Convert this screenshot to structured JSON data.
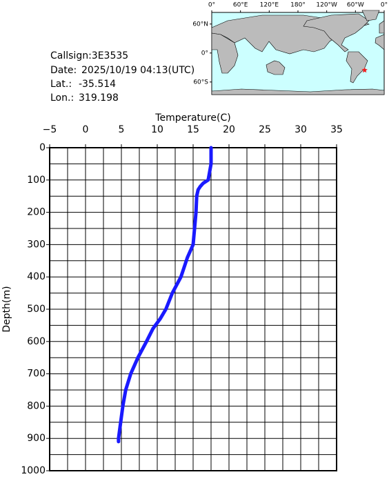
{
  "chart_data": {
    "type": "line",
    "orientation": "vertical",
    "x_label": "Depth(m)",
    "y_label": "Temperature(C)",
    "x": [
      0,
      50,
      100,
      110,
      120,
      130,
      150,
      200,
      250,
      300,
      340,
      360,
      400,
      450,
      500,
      530,
      560,
      600,
      650,
      700,
      750,
      800,
      850,
      900,
      910
    ],
    "series": [
      {
        "name": "Temperature",
        "color": "#1a1aff",
        "values": [
          17.5,
          17.5,
          17.1,
          16.4,
          16.0,
          15.7,
          15.5,
          15.4,
          15.2,
          15.0,
          14.2,
          13.9,
          13.3,
          12.1,
          11.2,
          10.4,
          9.4,
          8.5,
          7.3,
          6.3,
          5.6,
          5.2,
          4.9,
          4.6,
          4.6
        ]
      }
    ],
    "xlim": [
      0,
      1000
    ],
    "xticks": [
      0,
      100,
      200,
      300,
      400,
      500,
      600,
      700,
      800,
      900,
      1000
    ],
    "x_minor_ticks": [
      50,
      150,
      250,
      350,
      450,
      550,
      650,
      750,
      850,
      950
    ],
    "ylim": [
      -5,
      35
    ],
    "yticks": [
      {
        "value": -5,
        "label": "−5"
      },
      0,
      5,
      10,
      15,
      20,
      25,
      30,
      35
    ],
    "y_minor_ticks": [
      -2.5,
      2.5,
      7.5,
      12.5,
      17.5,
      22.5,
      27.5,
      32.5
    ],
    "grid": true
  },
  "info": {
    "callsign": "Callsign:3E3535",
    "date_label": "Date:",
    "date": "2025/10/19 04:13(UTC)",
    "lat_label": "Lat.:",
    "lat": -35.514,
    "lon_label": "Lon.:",
    "lon": 319.198
  },
  "map": {
    "lonlim": [
      0,
      360
    ],
    "latlim": [
      84,
      -86
    ],
    "marker_color": "#ee2222",
    "lonticks": [
      {
        "value": 0,
        "label": "0°"
      },
      {
        "value": 60,
        "label": "60°E"
      },
      {
        "value": 120,
        "label": "120°E"
      },
      {
        "value": 180,
        "label": "180°"
      },
      {
        "value": 240,
        "label": "120°W"
      },
      {
        "value": 300,
        "label": "60°W"
      },
      {
        "value": 360,
        "label": "0°"
      }
    ],
    "latticks": [
      {
        "value": 60,
        "label": "60°N"
      },
      {
        "value": 0,
        "label": "0°"
      },
      {
        "value": -60,
        "label": "60°S"
      }
    ]
  }
}
